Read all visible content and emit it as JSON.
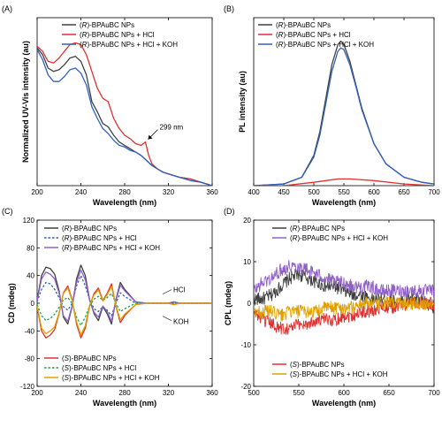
{
  "chart_data": [
    {
      "panel": "(A)",
      "type": "line",
      "xlabel": "Wavelength (nm)",
      "ylabel": "Normalized UV-Vis intensity (au)",
      "xlim": [
        200,
        360
      ],
      "xticks": [
        200,
        240,
        280,
        320,
        360
      ],
      "ylim": [
        0,
        1
      ],
      "yticks_shown": false,
      "legend_position": "top-center",
      "annotations": [
        {
          "text": "299 nm",
          "x": 299,
          "y": 0.26
        }
      ],
      "series": [
        {
          "name": "(R)-BPAuBC NPs",
          "color": "#404040",
          "dash": "solid",
          "x": [
            200,
            205,
            210,
            215,
            220,
            225,
            230,
            235,
            240,
            245,
            250,
            255,
            260,
            265,
            270,
            275,
            280,
            285,
            290,
            295,
            300,
            305,
            310,
            315,
            320,
            330,
            340,
            350,
            360
          ],
          "y": [
            0.82,
            0.78,
            0.7,
            0.68,
            0.69,
            0.72,
            0.76,
            0.77,
            0.74,
            0.66,
            0.5,
            0.44,
            0.37,
            0.35,
            0.3,
            0.26,
            0.24,
            0.22,
            0.2,
            0.18,
            0.15,
            0.12,
            0.1,
            0.08,
            0.07,
            0.05,
            0.04,
            0.02,
            0.0
          ]
        },
        {
          "name": "(R)-BPAuBC NPs + HCl",
          "color": "#e03030",
          "dash": "solid",
          "x": [
            200,
            205,
            210,
            215,
            220,
            225,
            230,
            235,
            240,
            245,
            250,
            255,
            260,
            265,
            270,
            275,
            280,
            285,
            290,
            295,
            299,
            302,
            305,
            310,
            315,
            320,
            330,
            340,
            350,
            360
          ],
          "y": [
            0.83,
            0.8,
            0.74,
            0.73,
            0.76,
            0.8,
            0.84,
            0.85,
            0.84,
            0.78,
            0.68,
            0.58,
            0.52,
            0.5,
            0.4,
            0.34,
            0.3,
            0.28,
            0.25,
            0.24,
            0.26,
            0.18,
            0.13,
            0.1,
            0.08,
            0.07,
            0.05,
            0.04,
            0.02,
            0.0
          ]
        },
        {
          "name": "(R)-BPAuBC NPs + HCl + KOH",
          "color": "#3060c0",
          "dash": "solid",
          "x": [
            200,
            205,
            210,
            215,
            220,
            225,
            230,
            235,
            240,
            245,
            250,
            255,
            260,
            265,
            270,
            275,
            280,
            285,
            290,
            295,
            300,
            305,
            310,
            315,
            320,
            330,
            340,
            350,
            360
          ],
          "y": [
            0.81,
            0.75,
            0.66,
            0.62,
            0.62,
            0.65,
            0.69,
            0.7,
            0.67,
            0.6,
            0.47,
            0.4,
            0.34,
            0.31,
            0.27,
            0.24,
            0.23,
            0.21,
            0.2,
            0.18,
            0.15,
            0.12,
            0.1,
            0.08,
            0.07,
            0.05,
            0.03,
            0.02,
            0.0
          ]
        }
      ]
    },
    {
      "panel": "(B)",
      "type": "line",
      "xlabel": "Wavelength (nm)",
      "ylabel": "PL intensity (au)",
      "xlim": [
        400,
        700
      ],
      "xticks": [
        400,
        450,
        500,
        550,
        600,
        650,
        700
      ],
      "ylim": [
        0,
        1
      ],
      "yticks_shown": false,
      "legend_position": "top-left",
      "series": [
        {
          "name": "(R)-BPAuBC NPs",
          "color": "#404040",
          "dash": "solid",
          "x": [
            400,
            450,
            480,
            500,
            510,
            520,
            530,
            540,
            545,
            550,
            560,
            570,
            580,
            600,
            620,
            650,
            680,
            700
          ],
          "y": [
            0,
            0.01,
            0.05,
            0.18,
            0.32,
            0.52,
            0.72,
            0.84,
            0.86,
            0.84,
            0.74,
            0.6,
            0.46,
            0.25,
            0.13,
            0.05,
            0.02,
            0.01
          ]
        },
        {
          "name": "(R)-BPAuBC NPs + HCl",
          "color": "#e03030",
          "dash": "solid",
          "x": [
            400,
            450,
            500,
            540,
            560,
            600,
            650,
            700
          ],
          "y": [
            0,
            0,
            0.02,
            0.04,
            0.04,
            0.03,
            0.01,
            0
          ]
        },
        {
          "name": "(R)-BPAuBC NPs + HCl + KOH",
          "color": "#3060c0",
          "dash": "solid",
          "x": [
            400,
            450,
            480,
            500,
            510,
            520,
            530,
            540,
            545,
            550,
            560,
            570,
            580,
            600,
            620,
            650,
            680,
            700
          ],
          "y": [
            0,
            0.01,
            0.05,
            0.17,
            0.3,
            0.49,
            0.68,
            0.8,
            0.82,
            0.81,
            0.72,
            0.59,
            0.45,
            0.25,
            0.13,
            0.05,
            0.02,
            0.01
          ]
        }
      ]
    },
    {
      "panel": "(C)",
      "type": "line",
      "xlabel": "Wavelength (nm)",
      "ylabel": "CD (mdeg)",
      "xlim": [
        200,
        360
      ],
      "xticks": [
        200,
        240,
        280,
        320,
        360
      ],
      "ylim": [
        -120,
        120
      ],
      "yticks": [
        -120,
        -80,
        -40,
        0,
        40,
        80,
        120
      ],
      "legend_position": "top-center and bottom-left",
      "annotations": [
        {
          "text": "HCl",
          "x": 318,
          "y": 12
        },
        {
          "text": "KOH",
          "x": 318,
          "y": -20
        }
      ],
      "series": [
        {
          "name": "(R)-BPAuBC NPs",
          "color": "#404040",
          "dash": "solid",
          "x": [
            200,
            204,
            208,
            212,
            216,
            220,
            224,
            228,
            232,
            236,
            240,
            244,
            248,
            252,
            256,
            260,
            264,
            268,
            272,
            276,
            280,
            290,
            300,
            310,
            320,
            325,
            330,
            340,
            350,
            360
          ],
          "y": [
            5,
            40,
            52,
            50,
            42,
            18,
            -20,
            -30,
            -5,
            35,
            55,
            40,
            5,
            -15,
            -25,
            -5,
            -15,
            -30,
            5,
            30,
            20,
            2,
            0,
            0,
            0,
            2,
            0,
            0,
            0,
            0
          ]
        },
        {
          "name": "(R)-BPAuBC NPs + HCl",
          "color": "#3060c0",
          "dash": "dot",
          "x": [
            200,
            204,
            208,
            212,
            216,
            220,
            224,
            228,
            232,
            236,
            240,
            244,
            248,
            252,
            256,
            260,
            264,
            268,
            272,
            276,
            280,
            290,
            300,
            310,
            320,
            330,
            340,
            360
          ],
          "y": [
            2,
            20,
            30,
            28,
            20,
            8,
            -5,
            -10,
            0,
            25,
            40,
            25,
            5,
            -8,
            -12,
            -5,
            -10,
            -18,
            0,
            15,
            10,
            0,
            0,
            0,
            0,
            0,
            0,
            0
          ]
        },
        {
          "name": "(R)-BPAuBC NPs + HCl + KOH",
          "color": "#9060c8",
          "dash": "solid",
          "x": [
            200,
            204,
            208,
            212,
            216,
            220,
            224,
            228,
            232,
            236,
            240,
            244,
            248,
            252,
            256,
            260,
            264,
            268,
            272,
            276,
            280,
            290,
            300,
            310,
            320,
            325,
            330,
            340,
            350,
            360
          ],
          "y": [
            4,
            35,
            45,
            42,
            35,
            15,
            -18,
            -26,
            -4,
            30,
            48,
            34,
            4,
            -13,
            -20,
            -4,
            -12,
            -26,
            4,
            26,
            18,
            2,
            0,
            0,
            0,
            2,
            0,
            0,
            0,
            0
          ]
        },
        {
          "name": "(S)-BPAuBC NPs",
          "color": "#e03030",
          "dash": "solid",
          "x": [
            200,
            204,
            208,
            212,
            216,
            220,
            224,
            228,
            232,
            236,
            240,
            244,
            248,
            252,
            256,
            260,
            264,
            268,
            272,
            276,
            280,
            290,
            300,
            310,
            320,
            325,
            330,
            340,
            350,
            360
          ],
          "y": [
            -5,
            -40,
            -50,
            -46,
            -38,
            -15,
            15,
            25,
            5,
            -30,
            -50,
            -36,
            -4,
            14,
            22,
            4,
            14,
            28,
            -4,
            -28,
            -18,
            -2,
            0,
            0,
            0,
            -2,
            0,
            0,
            0,
            0
          ]
        },
        {
          "name": "(S)-BPAuBC NPs + HCl",
          "color": "#20a050",
          "dash": "dot",
          "x": [
            200,
            204,
            208,
            212,
            216,
            220,
            224,
            228,
            232,
            236,
            240,
            244,
            248,
            252,
            256,
            260,
            264,
            268,
            272,
            276,
            280,
            290,
            300,
            310,
            320,
            330,
            340,
            360
          ],
          "y": [
            -2,
            -18,
            -25,
            -22,
            -16,
            -6,
            5,
            8,
            0,
            -20,
            -32,
            -20,
            -4,
            6,
            10,
            4,
            8,
            14,
            0,
            -12,
            -8,
            0,
            0,
            0,
            0,
            0,
            0,
            0
          ]
        },
        {
          "name": "(S)-BPAuBC NPs + HCl + KOH",
          "color": "#e0a000",
          "dash": "solid",
          "x": [
            200,
            204,
            208,
            212,
            216,
            220,
            224,
            228,
            232,
            236,
            240,
            244,
            248,
            252,
            256,
            260,
            264,
            268,
            272,
            276,
            280,
            290,
            300,
            310,
            320,
            325,
            330,
            340,
            350,
            360
          ],
          "y": [
            -4,
            -36,
            -44,
            -40,
            -34,
            -14,
            14,
            22,
            4,
            -27,
            -46,
            -32,
            -3,
            12,
            19,
            3,
            12,
            24,
            -3,
            -24,
            -16,
            -2,
            0,
            0,
            0,
            -2,
            0,
            0,
            0,
            0
          ]
        }
      ]
    },
    {
      "panel": "(D)",
      "type": "line",
      "xlabel": "Wavelength (nm)",
      "ylabel": "CPL (mdeg)",
      "xlim": [
        500,
        700
      ],
      "xticks": [
        500,
        550,
        600,
        650,
        700
      ],
      "ylim": [
        -20,
        20
      ],
      "yticks": [
        -20,
        -10,
        0,
        10,
        20
      ],
      "legend_position": "top-center and bottom-center",
      "series": [
        {
          "name": "(R)-BPAuBC NPs",
          "color": "#404040",
          "dash": "solid",
          "x": [
            500,
            510,
            520,
            530,
            540,
            550,
            560,
            570,
            580,
            590,
            600,
            610,
            620,
            630,
            640,
            650,
            660,
            670,
            680,
            690,
            700
          ],
          "y": [
            1,
            1,
            2,
            4,
            6,
            7,
            6,
            5,
            4,
            4,
            3,
            2,
            2,
            1,
            1,
            1,
            0,
            1,
            1,
            0,
            -1
          ]
        },
        {
          "name": "(R)-BPAuBC NPs + HCl + KOH",
          "color": "#9060c8",
          "dash": "solid",
          "x": [
            500,
            510,
            520,
            530,
            540,
            550,
            560,
            570,
            580,
            590,
            600,
            610,
            620,
            630,
            640,
            650,
            660,
            670,
            680,
            690,
            700
          ],
          "y": [
            3,
            5,
            6,
            8,
            9,
            9,
            8,
            7,
            6,
            5,
            5,
            4,
            4,
            4,
            3,
            3,
            3,
            3,
            3,
            3,
            3
          ]
        },
        {
          "name": "(S)-BPAuBC NPs",
          "color": "#e03030",
          "dash": "solid",
          "x": [
            500,
            510,
            520,
            530,
            540,
            550,
            560,
            570,
            580,
            590,
            600,
            610,
            620,
            630,
            640,
            650,
            660,
            670,
            680,
            690,
            700
          ],
          "y": [
            -2,
            -4,
            -5,
            -6,
            -6,
            -5,
            -5,
            -4,
            -4,
            -4,
            -3,
            -3,
            -2,
            -2,
            -1,
            -1,
            -1,
            0,
            0,
            0,
            0
          ]
        },
        {
          "name": "(S)-BPAuBC NPs + HCl + KOH",
          "color": "#e0a000",
          "dash": "solid",
          "x": [
            500,
            510,
            520,
            530,
            540,
            550,
            560,
            570,
            580,
            590,
            600,
            610,
            620,
            630,
            640,
            650,
            660,
            670,
            680,
            690,
            700
          ],
          "y": [
            -2,
            -2,
            -2,
            -3,
            -2,
            -2,
            -2,
            -2,
            -1,
            -1,
            -1,
            -1,
            0,
            0,
            0,
            0,
            0,
            0,
            0,
            0,
            0
          ]
        }
      ]
    }
  ]
}
